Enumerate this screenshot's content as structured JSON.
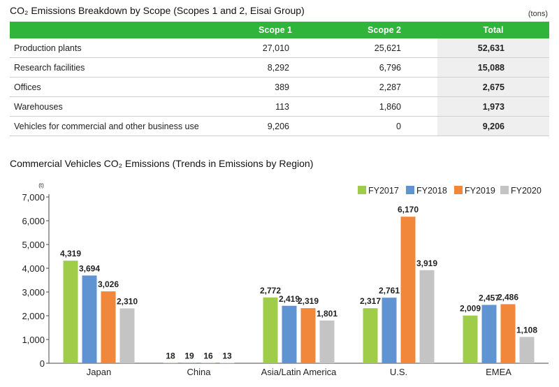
{
  "table": {
    "title": "CO₂ Emissions Breakdown by Scope (Scopes 1 and 2, Eisai Group)",
    "unit": "(tons)",
    "headers": [
      "",
      "Scope 1",
      "Scope 2",
      "Total"
    ],
    "rows": [
      {
        "label": "Production plants",
        "scope1": "27,010",
        "scope2": "25,621",
        "total": "52,631"
      },
      {
        "label": "Research facilities",
        "scope1": "8,292",
        "scope2": "6,796",
        "total": "15,088"
      },
      {
        "label": "Offices",
        "scope1": "389",
        "scope2": "2,287",
        "total": "2,675"
      },
      {
        "label": "Warehouses",
        "scope1": "113",
        "scope2": "1,860",
        "total": "1,973"
      },
      {
        "label": "Vehicles for commercial and other business use",
        "scope1": "9,206",
        "scope2": "0",
        "total": "9,206"
      }
    ],
    "colors": {
      "header_bg": "#2fb53a",
      "total_bg": "#efefef"
    }
  },
  "chart_data": {
    "type": "bar",
    "title": "Commercial Vehicles CO₂ Emissions (Trends in Emissions by Region)",
    "ylabel": "(t)",
    "xlabel": "",
    "ylim": [
      0,
      7000
    ],
    "yticks": [
      0,
      1000,
      2000,
      3000,
      4000,
      5000,
      6000,
      7000
    ],
    "ytick_labels": [
      "0",
      "1,000",
      "2,000",
      "3,000",
      "4,000",
      "5,000",
      "6,000",
      "7,000"
    ],
    "categories": [
      "Japan",
      "China",
      "Asia/Latin America",
      "U.S.",
      "EMEA"
    ],
    "series": [
      {
        "name": "FY2017",
        "color": "#9fcd4a",
        "values": [
          4319,
          18,
          2772,
          2317,
          2009
        ],
        "labels": [
          "4,319",
          "18",
          "2,772",
          "2,317",
          "2,009"
        ]
      },
      {
        "name": "FY2018",
        "color": "#5f93d2",
        "values": [
          3694,
          19,
          2419,
          2761,
          2457
        ],
        "labels": [
          "3,694",
          "19",
          "2,419",
          "2,761",
          "2,457"
        ]
      },
      {
        "name": "FY2019",
        "color": "#f0873a",
        "values": [
          3026,
          16,
          2319,
          6170,
          2486
        ],
        "labels": [
          "3,026",
          "16",
          "2,319",
          "6,170",
          "2,486"
        ]
      },
      {
        "name": "FY2020",
        "color": "#c4c4c4",
        "values": [
          2310,
          13,
          1801,
          3919,
          1108
        ],
        "labels": [
          "2,310",
          "13",
          "1,801",
          "3,919",
          "1,108"
        ]
      }
    ],
    "legend": "top-right",
    "grid": false
  }
}
